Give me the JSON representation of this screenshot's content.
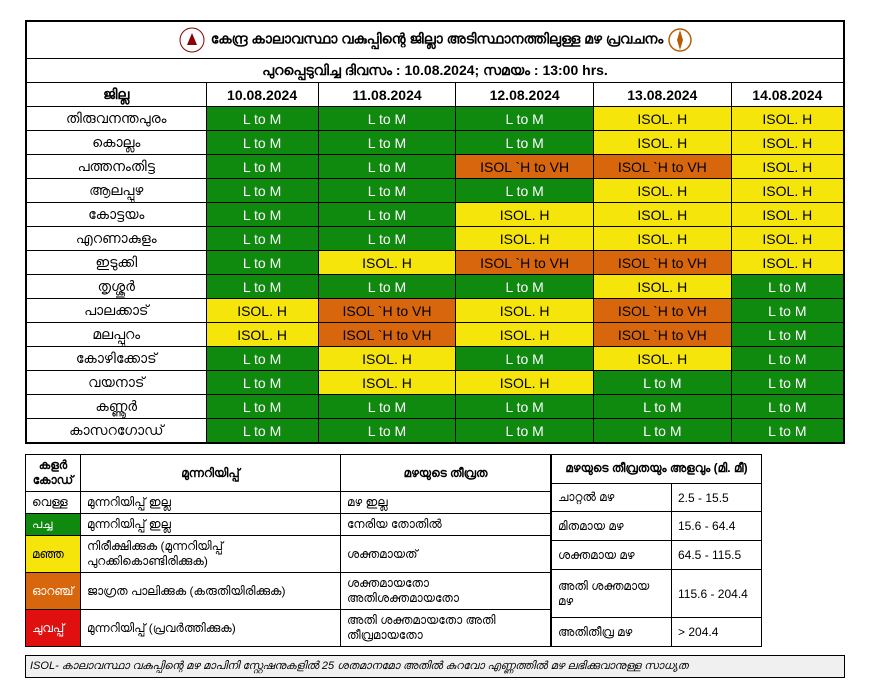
{
  "header": {
    "title": "കേന്ദ്ര കാലാവസ്ഥാ വകുപ്പിന്റെ ജില്ലാ അടിസ്ഥാനത്തിലുള്ള മഴ പ്രവചനം",
    "subtitle": "പുറപ്പെടുവിച്ച ദിവസം : 10.08.2024; സമയം : 13:00 hrs."
  },
  "columns": {
    "district": "ജില്ല",
    "dates": [
      "10.08.2024",
      "11.08.2024",
      "12.08.2024",
      "13.08.2024",
      "14.08.2024"
    ]
  },
  "cell_styles": {
    "lm": {
      "bg": "#0f8a0f",
      "text": "L to M"
    },
    "isolh": {
      "bg": "#f5e50a",
      "text": "ISOL. H"
    },
    "isolhvh": {
      "bg": "#d8660c",
      "text": "ISOL `H to VH"
    }
  },
  "rows": [
    {
      "district": "തിരുവനന്തപുരം",
      "cells": [
        "lm",
        "lm",
        "lm",
        "isolh",
        "isolh"
      ]
    },
    {
      "district": "കൊല്ലം",
      "cells": [
        "lm",
        "lm",
        "lm",
        "isolh",
        "isolh"
      ]
    },
    {
      "district": "പത്തനംതിട്ട",
      "cells": [
        "lm",
        "lm",
        "isolhvh",
        "isolhvh",
        "isolh"
      ]
    },
    {
      "district": "ആലപ്പുഴ",
      "cells": [
        "lm",
        "lm",
        "lm",
        "isolh",
        "isolh"
      ]
    },
    {
      "district": "കോട്ടയം",
      "cells": [
        "lm",
        "lm",
        "isolh",
        "isolh",
        "isolh"
      ]
    },
    {
      "district": "എറണാകുളം",
      "cells": [
        "lm",
        "lm",
        "isolh",
        "isolh",
        "isolh"
      ]
    },
    {
      "district": "ഇടുക്കി",
      "cells": [
        "lm",
        "isolh",
        "isolhvh",
        "isolhvh",
        "isolh"
      ]
    },
    {
      "district": "തൃശ്ശൂർ",
      "cells": [
        "lm",
        "lm",
        "lm",
        "isolh",
        "lm"
      ]
    },
    {
      "district": "പാലക്കാട്",
      "cells": [
        "isolh",
        "isolhvh",
        "isolh",
        "isolhvh",
        "lm"
      ]
    },
    {
      "district": "മലപ്പുറം",
      "cells": [
        "isolh",
        "isolhvh",
        "isolh",
        "isolhvh",
        "lm"
      ]
    },
    {
      "district": "കോഴിക്കോട്",
      "cells": [
        "lm",
        "isolh",
        "lm",
        "isolh",
        "lm"
      ]
    },
    {
      "district": "വയനാട്",
      "cells": [
        "lm",
        "isolh",
        "isolh",
        "lm",
        "lm"
      ]
    },
    {
      "district": "കണ്ണൂർ",
      "cells": [
        "lm",
        "lm",
        "lm",
        "lm",
        "lm"
      ]
    },
    {
      "district": "കാസറഗോഡ്",
      "cells": [
        "lm",
        "lm",
        "lm",
        "lm",
        "lm"
      ]
    }
  ],
  "legend1": {
    "headers": [
      "കളർ കോഡ്",
      "മുന്നറിയിപ്പ്",
      "മഴയുടെ തീവ്രത"
    ],
    "rows": [
      {
        "cc": "c-white",
        "code": "വെള്ള",
        "warn": "മുന്നറിയിപ്പ് ഇല്ല",
        "intensity": "മഴ ഇല്ല"
      },
      {
        "cc": "c-green",
        "code": "പച്ച",
        "warn": "മുന്നറിയിപ്പ് ഇല്ല",
        "intensity": "നേരിയ തോതിൽ"
      },
      {
        "cc": "c-yellow",
        "code": "മഞ്ഞ",
        "warn": "നിരീക്ഷിക്കുക (മുന്നറിയിപ്പ് പുറക്കികൊണ്ടിരിക്കുക)",
        "intensity": "ശക്തമായത്"
      },
      {
        "cc": "c-orange",
        "code": "ഓറഞ്ച്",
        "warn": "ജാഗ്രത പാലിക്കുക (കരുതിയിരിക്കുക)",
        "intensity": "ശക്തമായതോ അതിശക്തമായതോ"
      },
      {
        "cc": "c-red",
        "code": "ചുവപ്പ്",
        "warn": "മുന്നറിയിപ്പ് (പ്രവർത്തിക്കുക)",
        "intensity": "അതി ശക്തമായതോ അതി തീവ്രമായതോ"
      }
    ]
  },
  "legend2": {
    "header": "മഴയുടെ തീവ്രതയും അളവും (മി. മീ)",
    "rows": [
      {
        "label": "ചാറ്റൽ മഴ",
        "range": "2.5 - 15.5"
      },
      {
        "label": "മിതമായ മഴ",
        "range": "15.6 - 64.4"
      },
      {
        "label": "ശക്തമായ മഴ",
        "range": "64.5 - 115.5"
      },
      {
        "label": "അതി ശക്തമായ മഴ",
        "range": "115.6 - 204.4"
      },
      {
        "label": "അതിതീവ്ര മഴ",
        "range": "> 204.4"
      }
    ]
  },
  "footnote": "ISOL- കാലാവസ്ഥാ വകുപ്പിന്റെ മഴ മാപിനി സ്റ്റേഷനുകളിൽ 25 ശതമാനമോ അതിൽ കുറവോ എണ്ണത്തിൽ മഴ ലഭിക്കുവാനുള്ള സാധ്യത"
}
